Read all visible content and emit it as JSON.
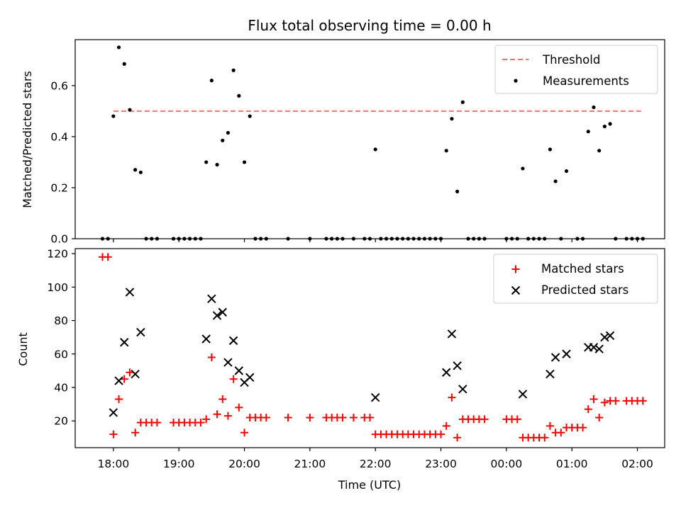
{
  "chart_data": [
    {
      "type": "scatter",
      "title": "Flux total observing time = 0.00 h",
      "xlabel": "",
      "ylabel": "Matched/Predicted stars",
      "xlim": [
        "17:25",
        "02:25"
      ],
      "ylim": [
        0,
        0.78
      ],
      "yticks": [
        "0.0",
        "0.2",
        "0.4",
        "0.6"
      ],
      "grid": false,
      "legend_position": "top-right",
      "threshold": {
        "name": "Threshold",
        "value": 0.5,
        "x_start": "18:00",
        "x_end": "02:05",
        "color": "#ff7070"
      },
      "series": [
        {
          "name": "Measurements",
          "color": "#000000",
          "marker": "dot",
          "points": [
            [
              "17:50",
              0
            ],
            [
              "17:55",
              0
            ],
            [
              "18:00",
              0.48
            ],
            [
              "18:05",
              0.75
            ],
            [
              "18:10",
              0.685
            ],
            [
              "18:15",
              0.505
            ],
            [
              "18:20",
              0.27
            ],
            [
              "18:25",
              0.26
            ],
            [
              "18:30",
              0
            ],
            [
              "18:35",
              0
            ],
            [
              "18:40",
              0
            ],
            [
              "18:55",
              0
            ],
            [
              "19:00",
              0
            ],
            [
              "19:05",
              0
            ],
            [
              "19:10",
              0
            ],
            [
              "19:15",
              0
            ],
            [
              "19:20",
              0
            ],
            [
              "19:25",
              0.3
            ],
            [
              "19:30",
              0.62
            ],
            [
              "19:35",
              0.29
            ],
            [
              "19:40",
              0.385
            ],
            [
              "19:45",
              0.415
            ],
            [
              "19:50",
              0.66
            ],
            [
              "19:55",
              0.56
            ],
            [
              "20:00",
              0.3
            ],
            [
              "20:05",
              0.48
            ],
            [
              "20:10",
              0
            ],
            [
              "20:15",
              0
            ],
            [
              "20:20",
              0
            ],
            [
              "20:40",
              0
            ],
            [
              "21:00",
              0
            ],
            [
              "21:15",
              0
            ],
            [
              "21:20",
              0
            ],
            [
              "21:25",
              0
            ],
            [
              "21:30",
              0
            ],
            [
              "21:40",
              0
            ],
            [
              "21:50",
              0
            ],
            [
              "21:55",
              0
            ],
            [
              "22:00",
              0.35
            ],
            [
              "22:05",
              0
            ],
            [
              "22:10",
              0
            ],
            [
              "22:15",
              0
            ],
            [
              "22:20",
              0
            ],
            [
              "22:25",
              0
            ],
            [
              "22:30",
              0
            ],
            [
              "22:35",
              0
            ],
            [
              "22:40",
              0
            ],
            [
              "22:45",
              0
            ],
            [
              "22:50",
              0
            ],
            [
              "22:55",
              0
            ],
            [
              "23:00",
              0
            ],
            [
              "23:05",
              0.345
            ],
            [
              "23:10",
              0.47
            ],
            [
              "23:15",
              0.185
            ],
            [
              "23:20",
              0.535
            ],
            [
              "23:25",
              0
            ],
            [
              "23:30",
              0
            ],
            [
              "23:35",
              0
            ],
            [
              "23:40",
              0
            ],
            [
              "00:00",
              0
            ],
            [
              "00:05",
              0
            ],
            [
              "00:10",
              0
            ],
            [
              "00:15",
              0.275
            ],
            [
              "00:20",
              0
            ],
            [
              "00:25",
              0
            ],
            [
              "00:30",
              0
            ],
            [
              "00:35",
              0
            ],
            [
              "00:40",
              0.35
            ],
            [
              "00:45",
              0.225
            ],
            [
              "00:50",
              0
            ],
            [
              "00:55",
              0.265
            ],
            [
              "01:05",
              0
            ],
            [
              "01:10",
              0
            ],
            [
              "01:15",
              0.42
            ],
            [
              "01:20",
              0.515
            ],
            [
              "01:25",
              0.345
            ],
            [
              "01:30",
              0.44
            ],
            [
              "01:35",
              0.45
            ],
            [
              "01:40",
              0
            ],
            [
              "01:50",
              0
            ],
            [
              "01:55",
              0
            ],
            [
              "02:00",
              0
            ],
            [
              "02:05",
              0
            ]
          ]
        }
      ]
    },
    {
      "type": "scatter",
      "title": "",
      "xlabel": "Time (UTC)",
      "ylabel": "Count",
      "xlim": [
        "17:25",
        "02:25"
      ],
      "ylim": [
        4,
        123
      ],
      "yticks": [
        "20",
        "40",
        "60",
        "80",
        "100",
        "120"
      ],
      "xticks": [
        "18:00",
        "19:00",
        "20:00",
        "21:00",
        "22:00",
        "23:00",
        "00:00",
        "01:00",
        "02:00"
      ],
      "grid": false,
      "legend_position": "top-right",
      "series": [
        {
          "name": "Matched stars",
          "color": "#ff0000",
          "marker": "plus",
          "points": [
            [
              "17:50",
              118
            ],
            [
              "17:55",
              118
            ],
            [
              "18:00",
              12
            ],
            [
              "18:05",
              33
            ],
            [
              "18:10",
              45
            ],
            [
              "18:15",
              49
            ],
            [
              "18:20",
              13
            ],
            [
              "18:25",
              19
            ],
            [
              "18:30",
              19
            ],
            [
              "18:35",
              19
            ],
            [
              "18:40",
              19
            ],
            [
              "18:55",
              19
            ],
            [
              "19:00",
              19
            ],
            [
              "19:05",
              19
            ],
            [
              "19:10",
              19
            ],
            [
              "19:15",
              19
            ],
            [
              "19:20",
              19
            ],
            [
              "19:25",
              21
            ],
            [
              "19:30",
              58
            ],
            [
              "19:35",
              24
            ],
            [
              "19:40",
              33
            ],
            [
              "19:45",
              23
            ],
            [
              "19:50",
              45
            ],
            [
              "19:55",
              28
            ],
            [
              "20:00",
              13
            ],
            [
              "20:05",
              22
            ],
            [
              "20:10",
              22
            ],
            [
              "20:15",
              22
            ],
            [
              "20:20",
              22
            ],
            [
              "20:40",
              22
            ],
            [
              "21:00",
              22
            ],
            [
              "21:15",
              22
            ],
            [
              "21:20",
              22
            ],
            [
              "21:25",
              22
            ],
            [
              "21:30",
              22
            ],
            [
              "21:40",
              22
            ],
            [
              "21:50",
              22
            ],
            [
              "21:55",
              22
            ],
            [
              "22:00",
              12
            ],
            [
              "22:05",
              12
            ],
            [
              "22:10",
              12
            ],
            [
              "22:15",
              12
            ],
            [
              "22:20",
              12
            ],
            [
              "22:25",
              12
            ],
            [
              "22:30",
              12
            ],
            [
              "22:35",
              12
            ],
            [
              "22:40",
              12
            ],
            [
              "22:45",
              12
            ],
            [
              "22:50",
              12
            ],
            [
              "22:55",
              12
            ],
            [
              "23:00",
              12
            ],
            [
              "23:05",
              17
            ],
            [
              "23:10",
              34
            ],
            [
              "23:15",
              10
            ],
            [
              "23:20",
              21
            ],
            [
              "23:25",
              21
            ],
            [
              "23:30",
              21
            ],
            [
              "23:35",
              21
            ],
            [
              "23:40",
              21
            ],
            [
              "00:00",
              21
            ],
            [
              "00:05",
              21
            ],
            [
              "00:10",
              21
            ],
            [
              "00:15",
              10
            ],
            [
              "00:20",
              10
            ],
            [
              "00:25",
              10
            ],
            [
              "00:30",
              10
            ],
            [
              "00:35",
              10
            ],
            [
              "00:40",
              17
            ],
            [
              "00:45",
              13
            ],
            [
              "00:50",
              13
            ],
            [
              "00:55",
              16
            ],
            [
              "01:00",
              16
            ],
            [
              "01:05",
              16
            ],
            [
              "01:10",
              16
            ],
            [
              "01:15",
              27
            ],
            [
              "01:20",
              33
            ],
            [
              "01:25",
              22
            ],
            [
              "01:30",
              31
            ],
            [
              "01:35",
              32
            ],
            [
              "01:40",
              32
            ],
            [
              "01:50",
              32
            ],
            [
              "01:55",
              32
            ],
            [
              "02:00",
              32
            ],
            [
              "02:05",
              32
            ]
          ]
        },
        {
          "name": "Predicted stars",
          "color": "#000000",
          "marker": "cross",
          "points": [
            [
              "18:00",
              25
            ],
            [
              "18:05",
              44
            ],
            [
              "18:10",
              67
            ],
            [
              "18:15",
              97
            ],
            [
              "18:20",
              48
            ],
            [
              "18:25",
              73
            ],
            [
              "19:25",
              69
            ],
            [
              "19:30",
              93
            ],
            [
              "19:35",
              83
            ],
            [
              "19:40",
              85
            ],
            [
              "19:45",
              55
            ],
            [
              "19:50",
              68
            ],
            [
              "19:55",
              50
            ],
            [
              "20:00",
              43
            ],
            [
              "20:05",
              46
            ],
            [
              "22:00",
              34
            ],
            [
              "23:05",
              49
            ],
            [
              "23:10",
              72
            ],
            [
              "23:15",
              53
            ],
            [
              "23:20",
              39
            ],
            [
              "00:15",
              36
            ],
            [
              "00:40",
              48
            ],
            [
              "00:45",
              58
            ],
            [
              "00:55",
              60
            ],
            [
              "01:15",
              64
            ],
            [
              "01:20",
              64
            ],
            [
              "01:25",
              63
            ],
            [
              "01:30",
              70
            ],
            [
              "01:35",
              71
            ]
          ]
        }
      ]
    }
  ]
}
